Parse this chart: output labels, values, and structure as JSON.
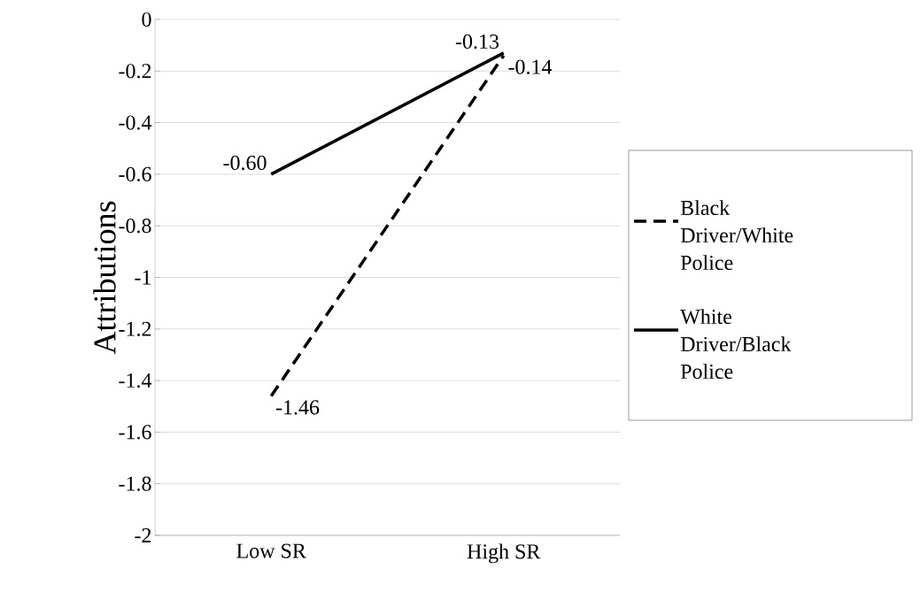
{
  "chart_data": {
    "type": "line",
    "ylabel": "Attributions",
    "categories": [
      "Low SR",
      "High SR"
    ],
    "series": [
      {
        "name": "Black Driver/White Police",
        "color": "#000000",
        "line_style": "dashed",
        "values": [
          -1.46,
          -0.14
        ],
        "value_labels": [
          "-1.46",
          "-0.14"
        ]
      },
      {
        "name": "White Driver/Black Police",
        "color": "#000000",
        "line_style": "solid",
        "values": [
          -0.6,
          -0.13
        ],
        "value_labels": [
          "-0.60",
          "-0.13"
        ]
      }
    ],
    "ylim": [
      -2,
      0
    ],
    "yticks": [
      0,
      -0.2,
      -0.4,
      -0.6,
      -0.8,
      -1,
      -1.2,
      -1.4,
      -1.6,
      -1.8,
      -2
    ],
    "grid": "y",
    "legend": "right"
  }
}
